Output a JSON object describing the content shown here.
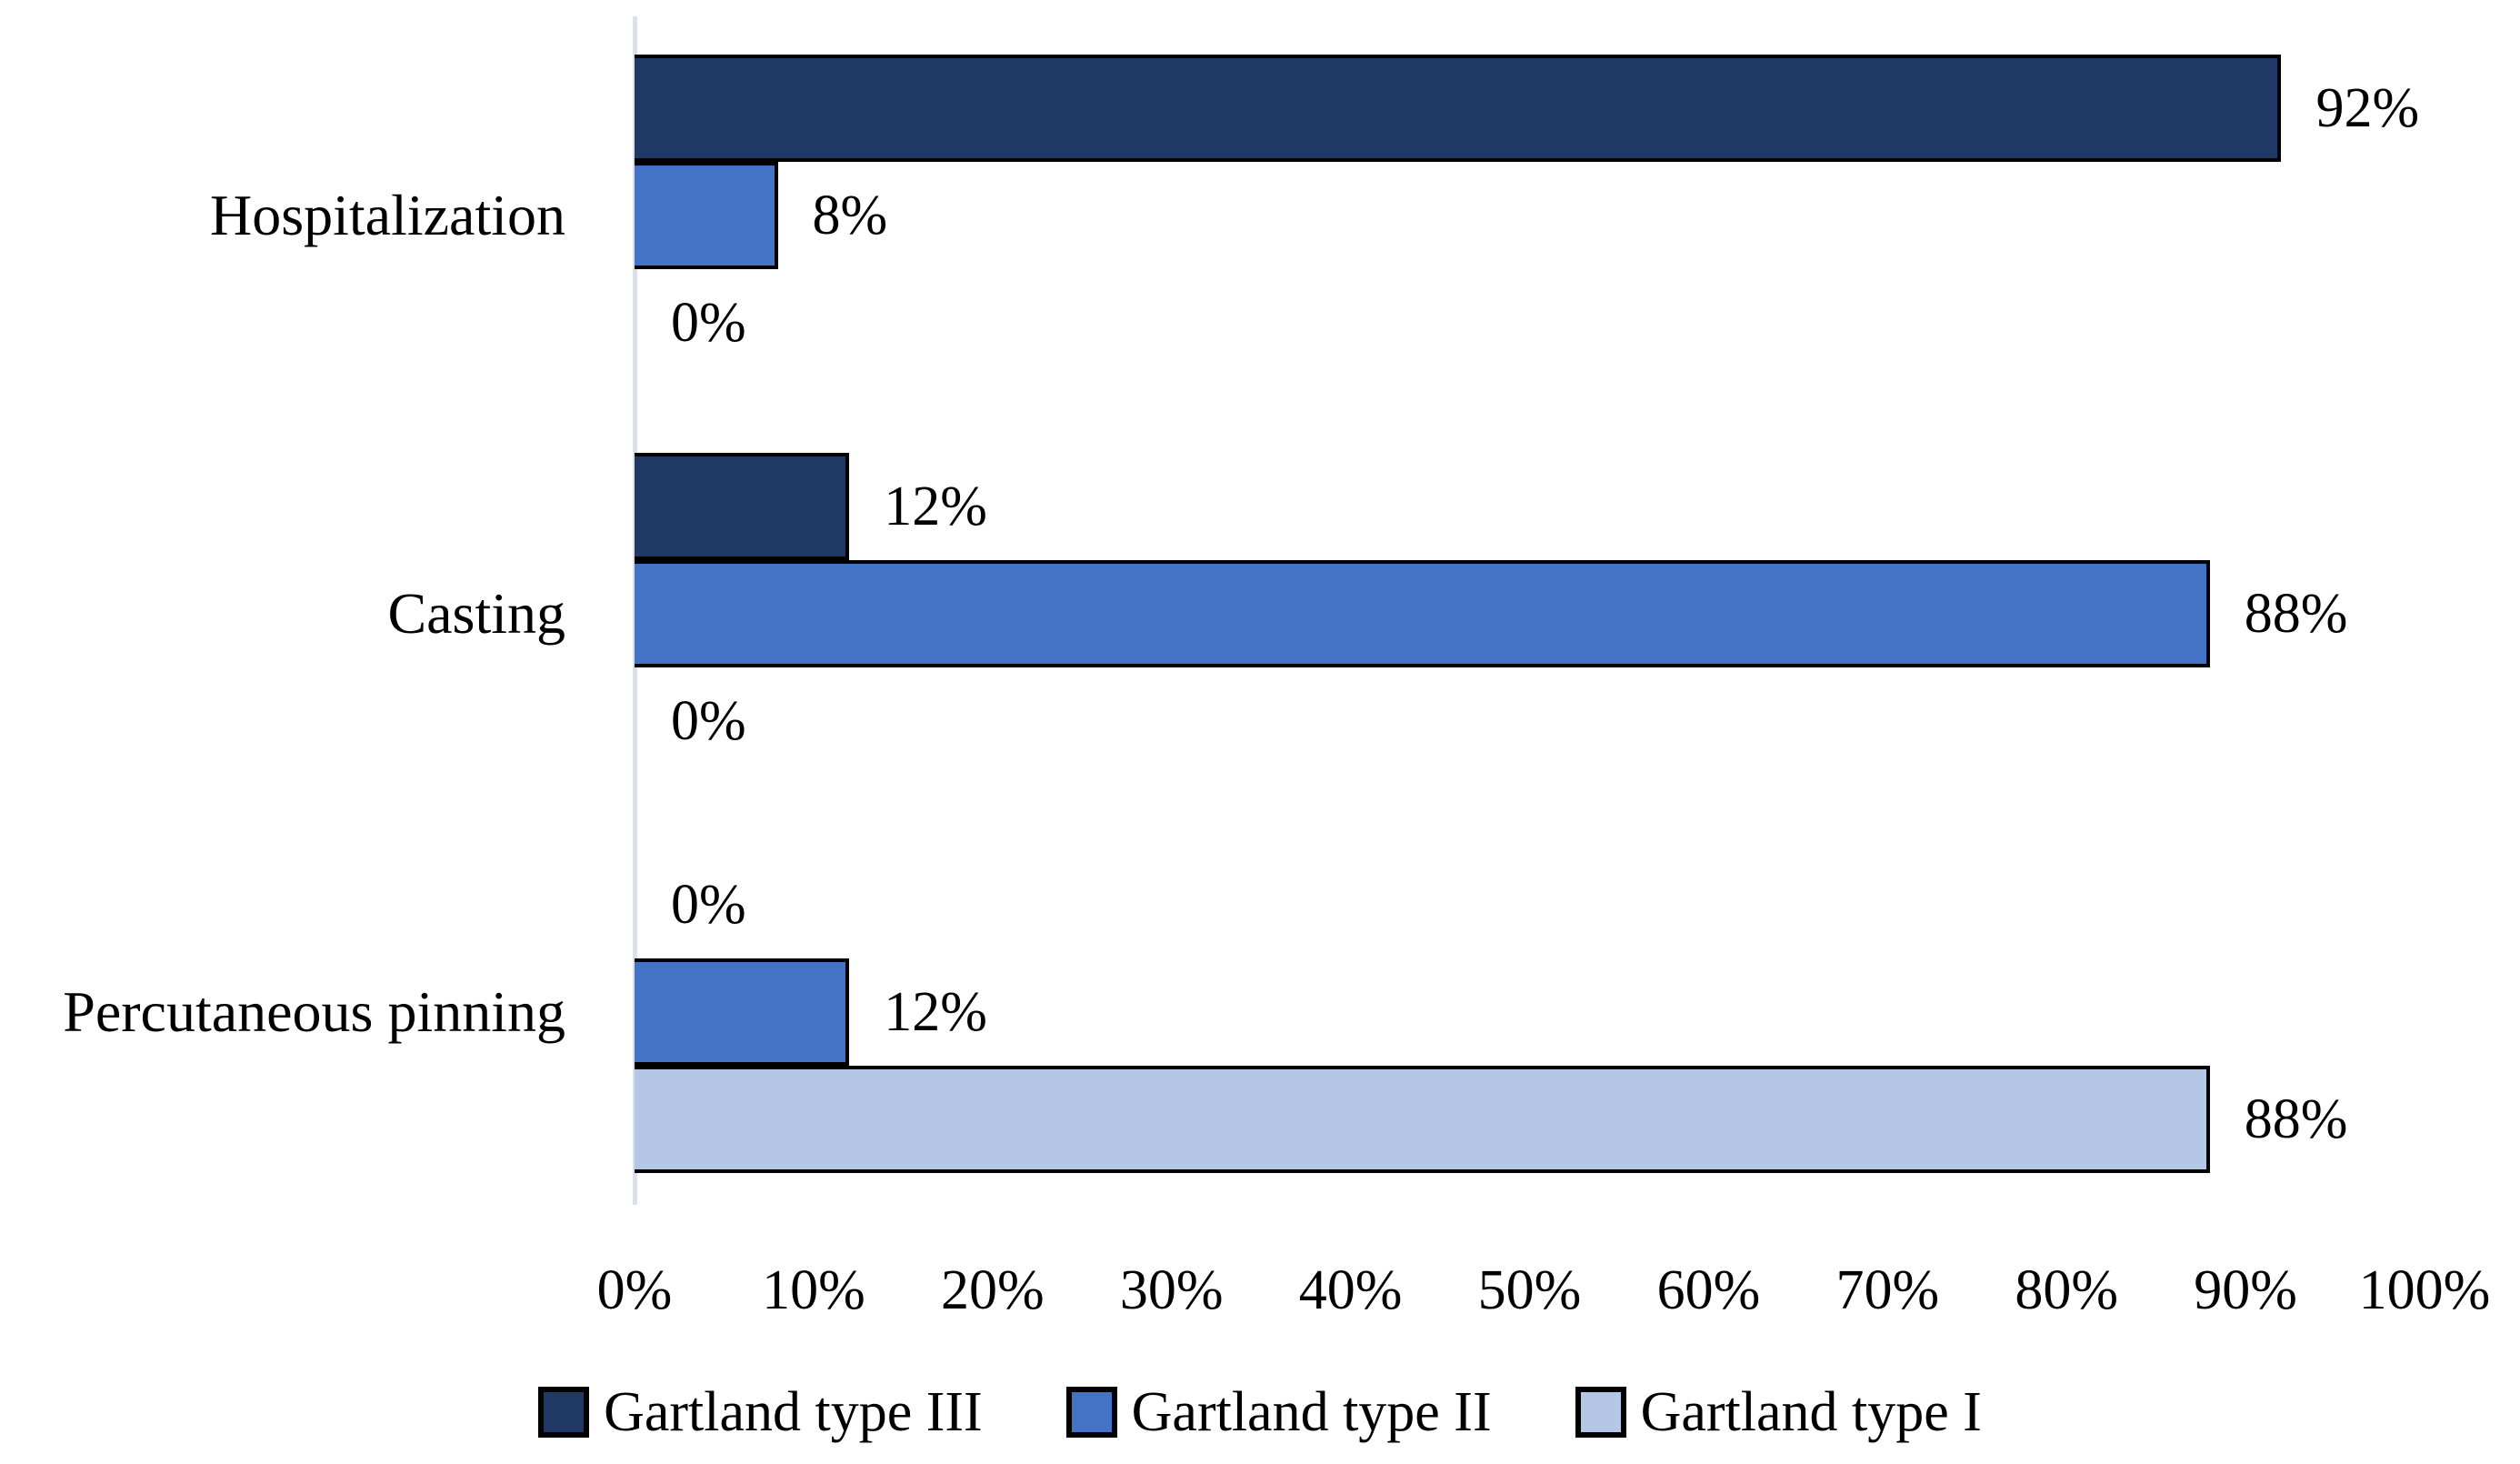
{
  "chart_data": {
    "type": "bar",
    "orientation": "horizontal",
    "title": "",
    "categories": [
      "Hospitalization",
      "Casting",
      "Percutaneous pinning"
    ],
    "series": [
      {
        "name": "Gartland type III",
        "color": "#203864",
        "values": [
          92,
          12,
          0
        ]
      },
      {
        "name": "Gartland type II",
        "color": "#4472C4",
        "values": [
          8,
          88,
          12
        ]
      },
      {
        "name": "Gartland type I",
        "color": "#B4C7E7",
        "values": [
          0,
          0,
          88
        ]
      }
    ],
    "value_suffix": "%",
    "x_ticks": [
      "0%",
      "10%",
      "20%",
      "30%",
      "40%",
      "50%",
      "60%",
      "70%",
      "80%",
      "90%",
      "100%"
    ],
    "xlim": [
      0,
      100
    ],
    "grid": false,
    "legend_position": "bottom",
    "bar_border_color": "#000000",
    "axis_line_color": "#DCE1E8",
    "text_color": "#000000",
    "background": "#FFFFFF"
  }
}
